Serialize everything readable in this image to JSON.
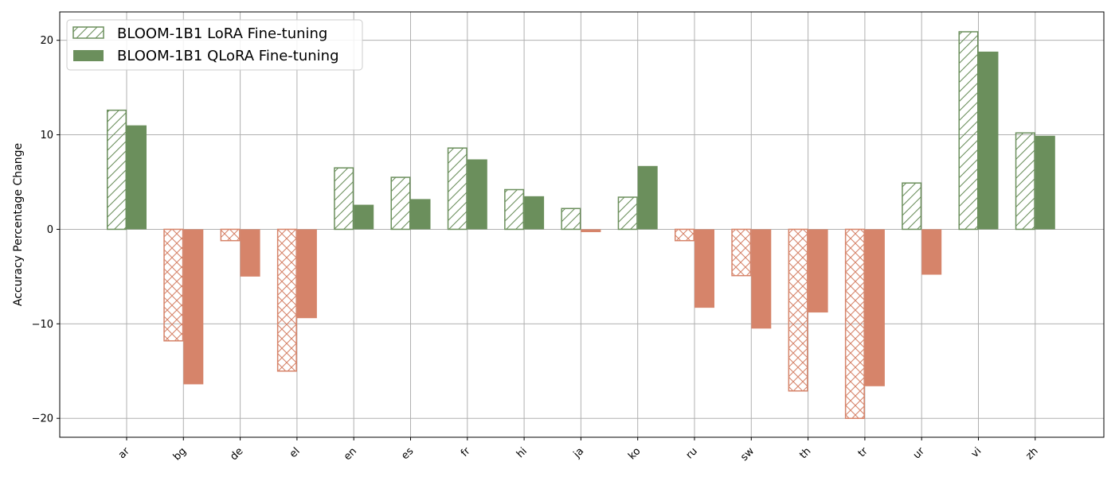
{
  "chart_data": {
    "type": "bar",
    "title": "",
    "xlabel": "",
    "ylabel": "Accuracy Percentage Change",
    "ylim": [
      -22,
      23
    ],
    "yticks": [
      -20,
      -10,
      0,
      10,
      20
    ],
    "grid": true,
    "legend_position": "top-left",
    "categories": [
      "ar",
      "bg",
      "de",
      "el",
      "en",
      "es",
      "fr",
      "hi",
      "ja",
      "ko",
      "ru",
      "sw",
      "th",
      "tr",
      "ur",
      "vi",
      "zh"
    ],
    "colors": {
      "positive": "#6b8f5c",
      "negative": "#d6846a"
    },
    "series": [
      {
        "name": "BLOOM-1B1 LoRA Fine-tuning",
        "style": "hatched",
        "values": [
          12.6,
          -11.8,
          -1.2,
          -15.0,
          6.5,
          5.5,
          8.6,
          4.2,
          2.2,
          3.4,
          -1.2,
          -4.9,
          -17.1,
          -20.0,
          4.9,
          20.9,
          10.2
        ]
      },
      {
        "name": "BLOOM-1B1 QLoRA Fine-tuning",
        "style": "solid",
        "values": [
          11.0,
          -16.4,
          -5.0,
          -9.4,
          2.6,
          3.2,
          7.4,
          3.5,
          -0.3,
          6.7,
          -8.3,
          -10.5,
          -8.8,
          -16.6,
          -4.8,
          18.8,
          9.9
        ]
      }
    ]
  }
}
